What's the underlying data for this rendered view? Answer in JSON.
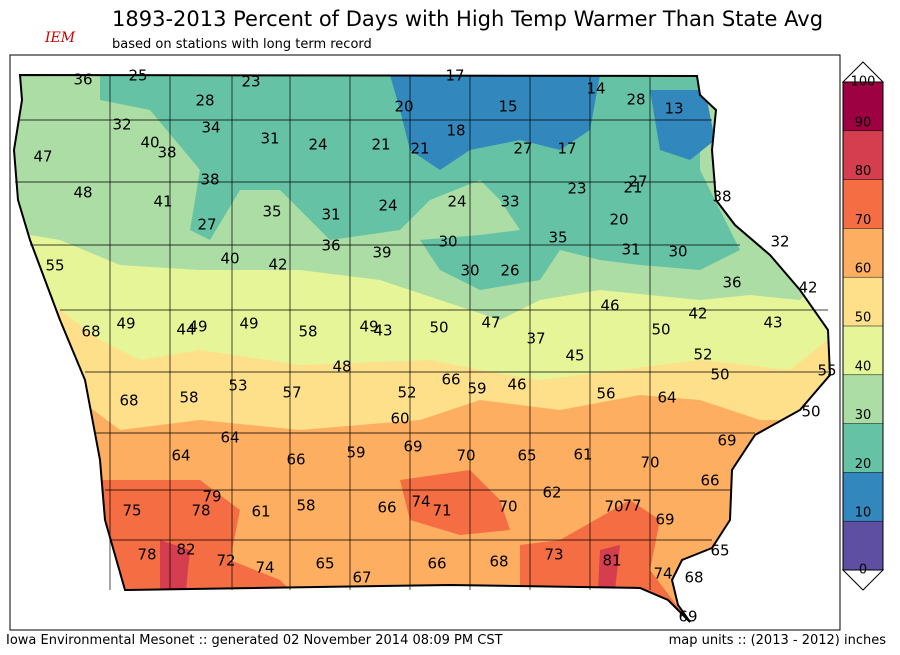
{
  "header": {
    "logo": "IEM",
    "title": "1893-2013 Percent of Days with High Temp Warmer Than State Avg",
    "subtitle": "based on stations with long term record"
  },
  "stations": [
    36,
    25,
    23,
    17,
    14,
    28,
    13,
    28,
    20,
    15,
    32,
    34,
    18,
    47,
    40,
    38,
    31,
    24,
    21,
    21,
    27,
    17,
    38,
    27,
    21,
    23,
    38,
    48,
    41,
    35,
    31,
    24,
    24,
    33,
    27,
    20,
    35,
    32,
    36,
    39,
    30,
    31,
    30,
    40,
    42,
    30,
    26,
    55,
    36,
    42,
    46,
    68,
    49,
    44,
    49,
    49,
    58,
    49,
    43,
    50,
    47,
    42,
    50,
    43,
    37,
    52,
    45,
    48,
    66,
    59,
    46,
    50,
    55,
    53,
    57,
    52,
    56,
    68,
    58,
    64,
    50,
    60,
    69,
    64,
    64,
    66,
    59,
    69,
    70,
    65,
    61,
    70,
    66,
    79,
    74,
    71,
    62,
    70,
    77,
    58,
    75,
    78,
    61,
    66,
    70,
    69,
    65,
    78,
    82,
    72,
    74,
    65,
    67,
    66,
    68,
    73,
    81,
    74,
    68,
    69
  ],
  "colorbar": {
    "ticks": [
      0,
      10,
      20,
      30,
      40,
      50,
      60,
      70,
      80,
      90,
      100
    ],
    "colors": [
      "#5e4fa2",
      "#3288bd",
      "#66c2a5",
      "#abdda4",
      "#e6f598",
      "#fee08b",
      "#fdae61",
      "#f46d43",
      "#d53e4f",
      "#9e0142"
    ]
  },
  "footer": {
    "left": "Iowa Environmental Mesonet :: generated 02 November 2014 08:09 PM CST",
    "right": "map units :: (2013 - 2012) inches"
  }
}
